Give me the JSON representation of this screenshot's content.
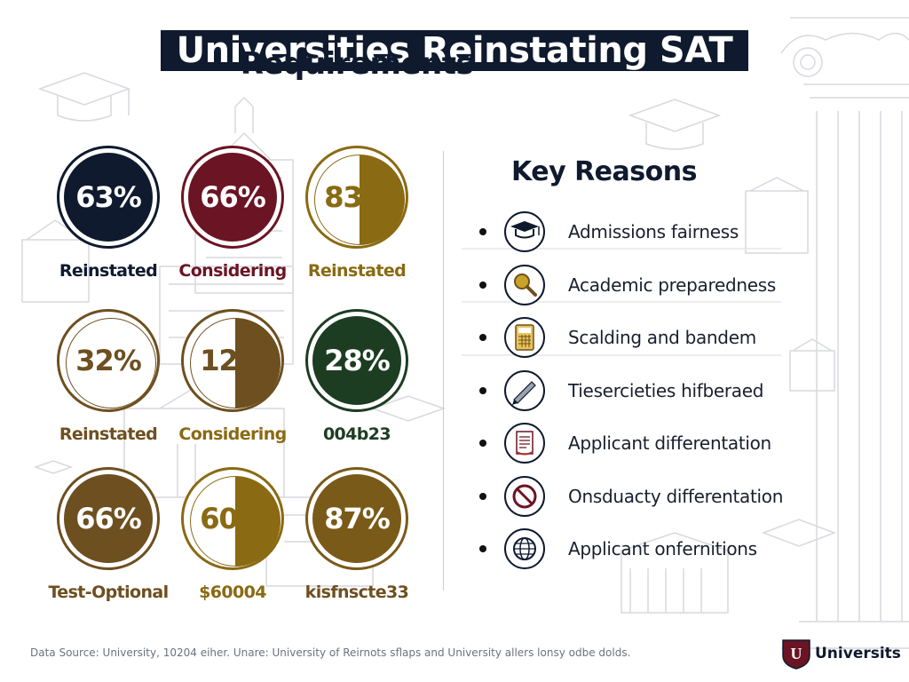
{
  "title": {
    "line1": "Universities Reinstating SAT",
    "line2": "Requirements"
  },
  "colors": {
    "navy": "#0f1a2e",
    "maroon": "#6b1424",
    "gold": "#8a6a12",
    "brown": "#6e4f1f",
    "green": "#1d3d22"
  },
  "stats": [
    {
      "value": "63%",
      "label": "Reinstated",
      "style": "solid",
      "color": "#0f1a2e",
      "label_color": "#0f1a2e"
    },
    {
      "value": "66%",
      "label": "Considering",
      "style": "solid",
      "color": "#6b1424",
      "label_color": "#6b1424"
    },
    {
      "value": "83%",
      "label": "Reinstated",
      "style": "half",
      "color": "#8a6a12",
      "label_color": "#8a6a12"
    },
    {
      "value": "32%",
      "label": "Reinstated",
      "style": "outline",
      "color": "#6e4f1f",
      "label_color": "#6e4f1f"
    },
    {
      "value": "12%",
      "label": "Considering",
      "style": "half",
      "color": "#6e4f1f",
      "label_color": "#8a6a12"
    },
    {
      "value": "28%",
      "label": "004b23",
      "style": "solid",
      "color": "#1d3d22",
      "label_color": "#1d3d22"
    },
    {
      "value": "66%",
      "label": "Test-Optional",
      "style": "solid",
      "color": "#6e4f1f",
      "label_color": "#6e4f1f"
    },
    {
      "value": "60%",
      "label": "$60004",
      "style": "half",
      "color": "#8a6a12",
      "label_color": "#8a6a12"
    },
    {
      "value": "87%",
      "label": "kisfnscte33",
      "style": "solid",
      "color": "#7a5a18",
      "label_color": "#6e4f1f"
    }
  ],
  "reasons": {
    "heading": "Key Reasons",
    "items": [
      {
        "text": "Admissions fairness",
        "icon": "graduation-cap-icon"
      },
      {
        "text": "Academic preparedness",
        "icon": "magnifier-icon"
      },
      {
        "text": "Scalding and bandem",
        "icon": "calculator-icon"
      },
      {
        "text": "Tiesercieties hifberaed",
        "icon": "pen-icon"
      },
      {
        "text": "Applicant differentation",
        "icon": "document-icon"
      },
      {
        "text": "Onsduacty differentation",
        "icon": "prohibited-icon"
      },
      {
        "text": "Applicant onfernitions",
        "icon": "globe-icon"
      }
    ]
  },
  "footer": {
    "source": "Data Source: University, 10204 eiher. Unare: University of Reirnots sflaps and University allers lonsy odbe dolds."
  },
  "brand": {
    "label": "Universits",
    "mark": "U"
  }
}
